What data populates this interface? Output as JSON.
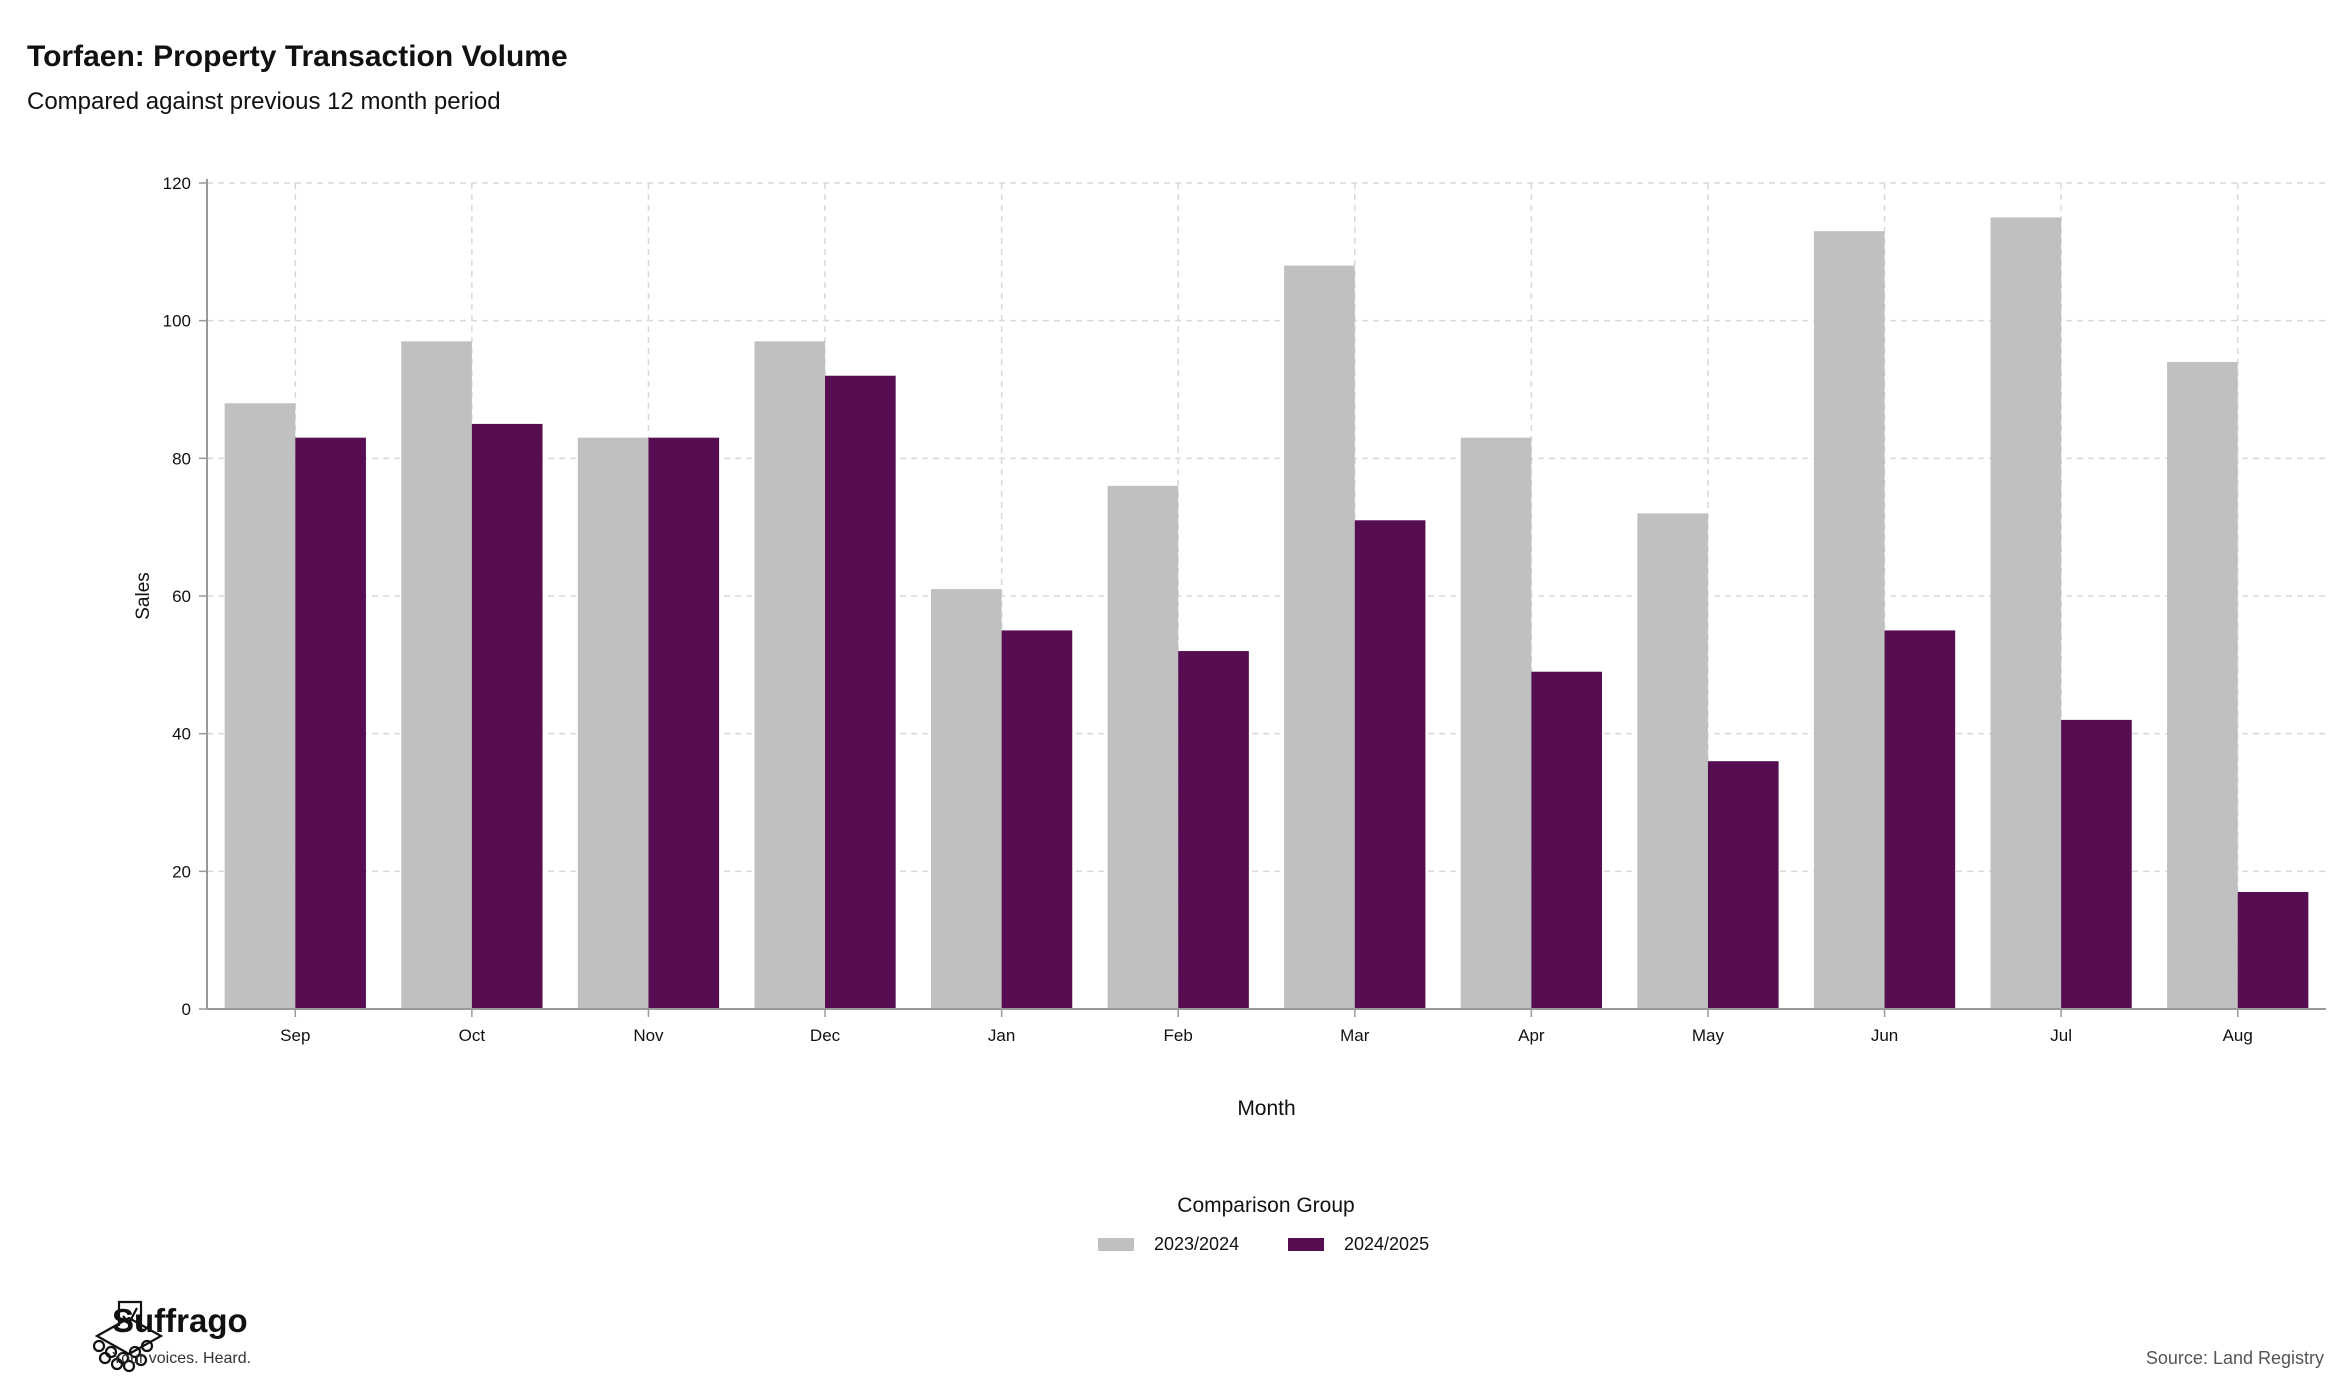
{
  "header": {
    "title": "Torfaen: Property Transaction Volume",
    "subtitle": "Compared against previous 12 month period"
  },
  "brand": {
    "name": "Suffrago",
    "tagline": "Your voices. Heard."
  },
  "footer": {
    "source": "Source: Land Registry"
  },
  "colors": {
    "series_2023": "#c0c0c0",
    "series_2024": "#560d52",
    "grid": "#d9d9d9",
    "axis": "#999999"
  },
  "chart_data": {
    "type": "bar",
    "title": "Torfaen: Property Transaction Volume",
    "subtitle": "Compared against previous 12 month period",
    "xlabel": "Month",
    "ylabel": "Sales",
    "ylim": [
      0,
      120
    ],
    "yticks": [
      0,
      20,
      40,
      60,
      80,
      100,
      120
    ],
    "grid": true,
    "legend_title": "Comparison Group",
    "legend_position": "bottom",
    "categories": [
      "Sep",
      "Oct",
      "Nov",
      "Dec",
      "Jan",
      "Feb",
      "Mar",
      "Apr",
      "May",
      "Jun",
      "Jul",
      "Aug"
    ],
    "series": [
      {
        "name": "2023/2024",
        "color": "#c0c0c0",
        "values": [
          88,
          97,
          83,
          97,
          61,
          76,
          108,
          83,
          72,
          113,
          115,
          94
        ]
      },
      {
        "name": "2024/2025",
        "color": "#560d52",
        "values": [
          83,
          85,
          83,
          92,
          55,
          52,
          71,
          49,
          36,
          55,
          42,
          17
        ]
      }
    ]
  }
}
